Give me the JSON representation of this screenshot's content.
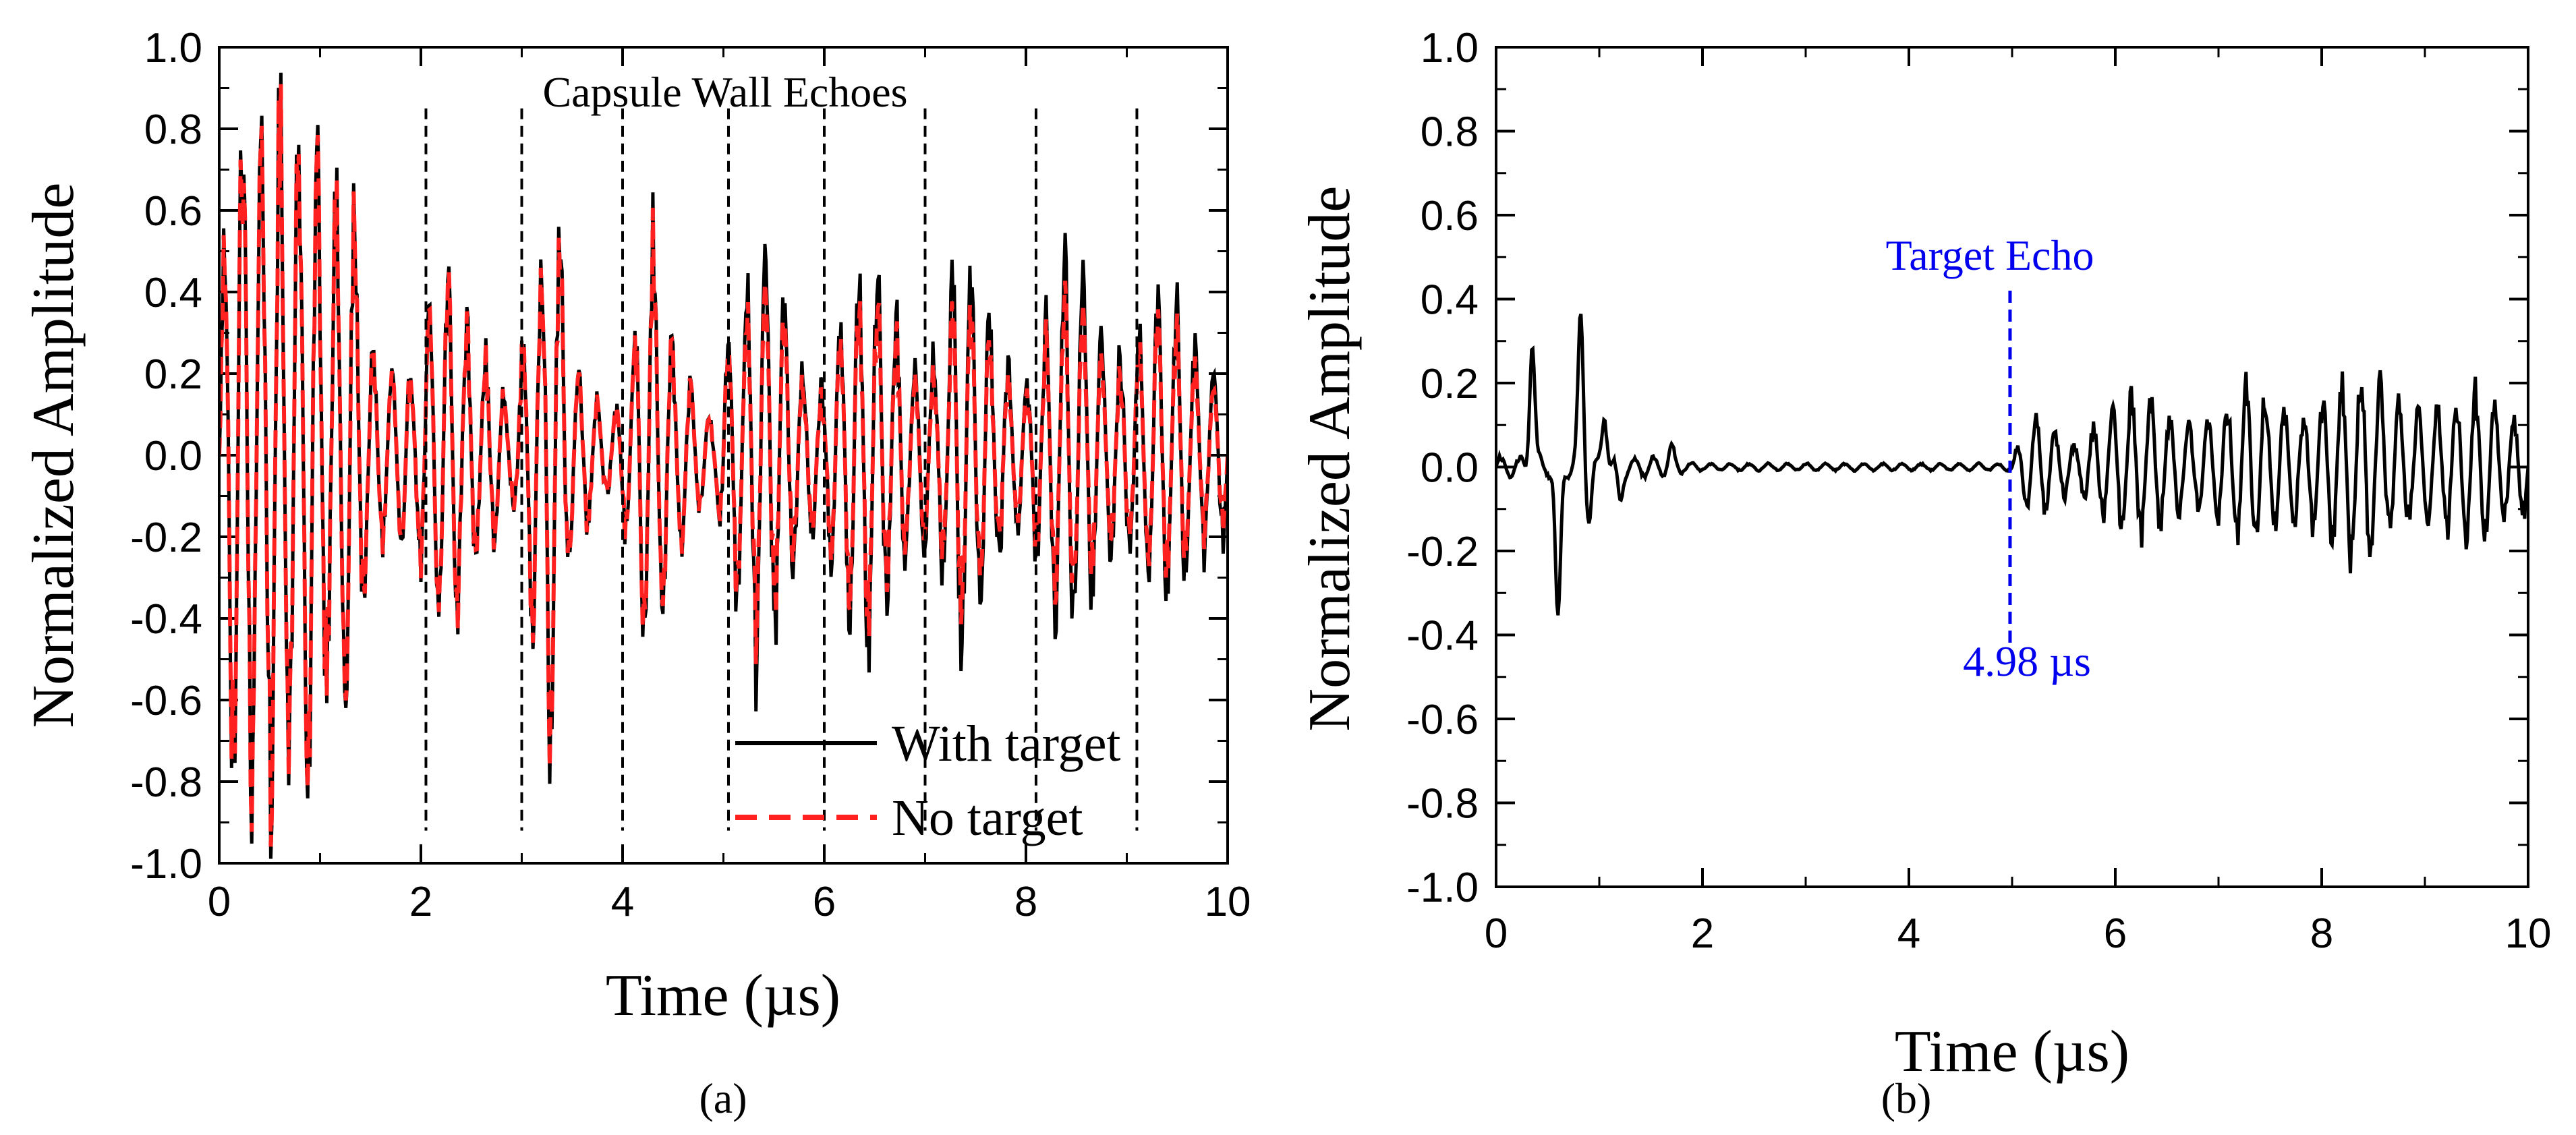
{
  "chart_data": [
    {
      "type": "line",
      "panel_label": "(a)",
      "xlabel": "Time (µs)",
      "ylabel": "Normalized Amplitude",
      "xlim": [
        0,
        10
      ],
      "ylim": [
        -1.0,
        1.0
      ],
      "x_ticks": [
        "0",
        "2",
        "4",
        "6",
        "8",
        "10"
      ],
      "y_ticks": [
        "1.0",
        "0.8",
        "0.6",
        "0.4",
        "0.2",
        "0.0",
        "-0.2",
        "-0.4",
        "-0.6",
        "-0.8",
        "-1.0"
      ],
      "annotation": {
        "text": "Capsule Wall Echoes",
        "marker_times": [
          2.05,
          3.0,
          4.0,
          5.05,
          6.0,
          7.0,
          8.1,
          9.1
        ],
        "marker_range": [
          -0.92,
          0.85
        ],
        "color": "#000000"
      },
      "legend": {
        "position": "bottom-right"
      },
      "series": [
        {
          "name": "With target",
          "color": "#000000",
          "style": "solid",
          "envelope": [
            [
              0.0,
              0.3
            ],
            [
              0.1,
              1.0
            ],
            [
              0.3,
              1.0
            ],
            [
              0.5,
              1.0
            ],
            [
              0.7,
              1.0
            ],
            [
              0.9,
              1.0
            ],
            [
              1.1,
              0.72
            ],
            [
              1.3,
              0.8
            ],
            [
              1.5,
              0.3
            ],
            [
              1.7,
              0.25
            ],
            [
              1.9,
              0.25
            ],
            [
              2.1,
              0.42
            ],
            [
              2.3,
              0.55
            ],
            [
              2.5,
              0.35
            ],
            [
              2.7,
              0.28
            ],
            [
              2.9,
              0.12
            ],
            [
              3.1,
              0.48
            ],
            [
              3.3,
              0.9
            ],
            [
              3.5,
              0.28
            ],
            [
              3.7,
              0.2
            ],
            [
              3.9,
              0.1
            ],
            [
              4.1,
              0.32
            ],
            [
              4.3,
              0.68
            ],
            [
              4.5,
              0.3
            ],
            [
              4.7,
              0.2
            ],
            [
              4.9,
              0.1
            ],
            [
              5.1,
              0.45
            ],
            [
              5.35,
              0.66
            ],
            [
              5.6,
              0.45
            ],
            [
              5.8,
              0.25
            ],
            [
              6.0,
              0.2
            ],
            [
              6.2,
              0.5
            ],
            [
              6.45,
              0.58
            ],
            [
              6.7,
              0.45
            ],
            [
              6.9,
              0.25
            ],
            [
              7.1,
              0.3
            ],
            [
              7.35,
              0.62
            ],
            [
              7.55,
              0.48
            ],
            [
              7.8,
              0.3
            ],
            [
              8.0,
              0.2
            ],
            [
              8.2,
              0.4
            ],
            [
              8.4,
              0.62
            ],
            [
              8.6,
              0.5
            ],
            [
              8.8,
              0.3
            ],
            [
              9.0,
              0.3
            ],
            [
              9.2,
              0.42
            ],
            [
              9.5,
              0.45
            ],
            [
              9.7,
              0.3
            ],
            [
              10.0,
              0.25
            ]
          ]
        },
        {
          "name": "No target",
          "color": "#ff2020",
          "style": "dashed",
          "envelope": [
            [
              0.0,
              0.3
            ],
            [
              0.1,
              1.0
            ],
            [
              0.3,
              1.0
            ],
            [
              0.5,
              1.0
            ],
            [
              0.7,
              1.0
            ],
            [
              0.9,
              1.0
            ],
            [
              1.1,
              0.72
            ],
            [
              1.3,
              0.8
            ],
            [
              1.5,
              0.3
            ],
            [
              1.7,
              0.25
            ],
            [
              1.9,
              0.25
            ],
            [
              2.1,
              0.42
            ],
            [
              2.3,
              0.55
            ],
            [
              2.5,
              0.35
            ],
            [
              2.7,
              0.28
            ],
            [
              2.9,
              0.12
            ],
            [
              3.1,
              0.48
            ],
            [
              3.3,
              0.88
            ],
            [
              3.5,
              0.28
            ],
            [
              3.7,
              0.2
            ],
            [
              3.9,
              0.1
            ],
            [
              4.1,
              0.32
            ],
            [
              4.3,
              0.66
            ],
            [
              4.5,
              0.3
            ],
            [
              4.7,
              0.2
            ],
            [
              4.9,
              0.1
            ],
            [
              5.1,
              0.42
            ],
            [
              5.35,
              0.55
            ],
            [
              5.6,
              0.4
            ],
            [
              5.8,
              0.22
            ],
            [
              6.0,
              0.18
            ],
            [
              6.2,
              0.45
            ],
            [
              6.45,
              0.5
            ],
            [
              6.7,
              0.4
            ],
            [
              6.9,
              0.22
            ],
            [
              7.1,
              0.25
            ],
            [
              7.35,
              0.5
            ],
            [
              7.55,
              0.4
            ],
            [
              7.8,
              0.25
            ],
            [
              8.0,
              0.18
            ],
            [
              8.2,
              0.35
            ],
            [
              8.4,
              0.5
            ],
            [
              8.6,
              0.4
            ],
            [
              8.8,
              0.25
            ],
            [
              9.0,
              0.25
            ],
            [
              9.2,
              0.38
            ],
            [
              9.5,
              0.38
            ],
            [
              9.7,
              0.25
            ],
            [
              10.0,
              0.2
            ]
          ]
        }
      ]
    },
    {
      "type": "line",
      "panel_label": "(b)",
      "xlabel": "Time (µs)",
      "ylabel": "Normalized Amplitude",
      "xlim": [
        0,
        10
      ],
      "ylim": [
        -1.0,
        1.0
      ],
      "x_ticks": [
        "0",
        "2",
        "4",
        "6",
        "8",
        "10"
      ],
      "y_ticks": [
        "1.0",
        "0.8",
        "0.6",
        "0.4",
        "0.2",
        "0.0",
        "-0.2",
        "-0.4",
        "-0.6",
        "-0.8",
        "-1.0"
      ],
      "annotation": {
        "label": "Target Echo",
        "value_label": "4.98 µs",
        "marker_time": 4.98,
        "marker_range": [
          -0.42,
          0.42
        ],
        "color": "#0000ee"
      },
      "series": [
        {
          "color": "#000000",
          "style": "solid",
          "spikes": [
            [
              0.35,
              0.3
            ],
            [
              0.6,
              -0.38
            ],
            [
              0.82,
              0.36
            ],
            [
              0.9,
              -0.12
            ],
            [
              1.05,
              0.13
            ],
            [
              1.2,
              -0.08
            ],
            [
              1.7,
              0.04
            ]
          ],
          "envelope": [
            [
              1.5,
              0.03
            ],
            [
              2.0,
              0.01
            ],
            [
              3.0,
              0.01
            ],
            [
              4.0,
              0.01
            ],
            [
              4.98,
              0.01
            ],
            [
              5.1,
              0.1
            ],
            [
              5.3,
              0.15
            ],
            [
              5.6,
              0.06
            ],
            [
              5.8,
              0.12
            ],
            [
              6.0,
              0.18
            ],
            [
              6.3,
              0.22
            ],
            [
              6.5,
              0.15
            ],
            [
              6.8,
              0.12
            ],
            [
              7.0,
              0.16
            ],
            [
              7.3,
              0.26
            ],
            [
              7.5,
              0.2
            ],
            [
              7.8,
              0.15
            ],
            [
              8.1,
              0.22
            ],
            [
              8.4,
              0.3
            ],
            [
              8.6,
              0.22
            ],
            [
              8.9,
              0.15
            ],
            [
              9.2,
              0.18
            ],
            [
              9.5,
              0.22
            ],
            [
              9.8,
              0.15
            ],
            [
              10.0,
              0.14
            ]
          ]
        }
      ]
    }
  ]
}
